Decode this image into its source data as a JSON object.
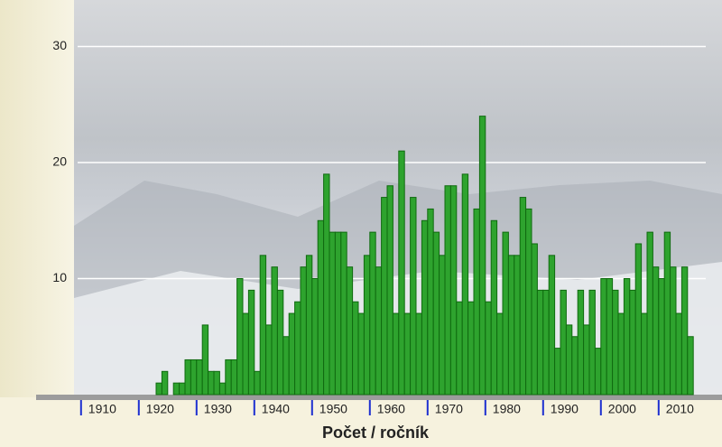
{
  "chart_data": {
    "type": "bar",
    "x_label": "Počet / ročník",
    "x": [
      1923,
      1924,
      1925,
      1926,
      1927,
      1928,
      1929,
      1930,
      1931,
      1932,
      1933,
      1934,
      1935,
      1936,
      1937,
      1938,
      1939,
      1940,
      1941,
      1942,
      1943,
      1944,
      1945,
      1946,
      1947,
      1948,
      1949,
      1950,
      1951,
      1952,
      1953,
      1954,
      1955,
      1956,
      1957,
      1958,
      1959,
      1960,
      1961,
      1962,
      1963,
      1964,
      1965,
      1966,
      1967,
      1968,
      1969,
      1970,
      1971,
      1972,
      1973,
      1974,
      1975,
      1976,
      1977,
      1978,
      1979,
      1980,
      1981,
      1982,
      1983,
      1984,
      1985,
      1986,
      1987,
      1988,
      1989,
      1990,
      1991,
      1992,
      1993,
      1994,
      1995,
      1996,
      1997,
      1998,
      1999,
      2000,
      2001,
      2002,
      2003,
      2004,
      2005,
      2006,
      2007,
      2008,
      2009,
      2010,
      2011,
      2012,
      2013,
      2014,
      2015
    ],
    "values": [
      1,
      2,
      0,
      1,
      1,
      3,
      3,
      3,
      6,
      2,
      2,
      1,
      3,
      3,
      10,
      7,
      9,
      2,
      12,
      6,
      11,
      9,
      5,
      7,
      8,
      11,
      12,
      10,
      15,
      19,
      14,
      14,
      14,
      11,
      8,
      7,
      12,
      14,
      11,
      17,
      18,
      7,
      21,
      7,
      17,
      7,
      15,
      16,
      14,
      12,
      18,
      18,
      8,
      19,
      8,
      16,
      24,
      8,
      15,
      7,
      14,
      12,
      12,
      17,
      16,
      13,
      9,
      9,
      12,
      4,
      9,
      6,
      5,
      9,
      6,
      9,
      4,
      10,
      10,
      9,
      7,
      10,
      9,
      13,
      7,
      14,
      11,
      10,
      14,
      11,
      7,
      11,
      5
    ],
    "color": "#2ea32e",
    "xlim": [
      1908,
      2018
    ],
    "xticks": [
      1910,
      1920,
      1930,
      1940,
      1950,
      1960,
      1970,
      1980,
      1990,
      2000,
      2010
    ],
    "ylim": [
      0,
      33
    ],
    "yticks": [
      10,
      20,
      30
    ],
    "grid": true
  }
}
